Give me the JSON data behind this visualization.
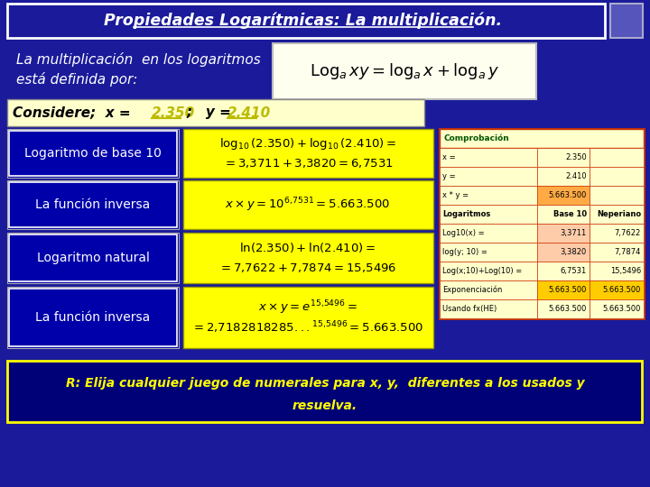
{
  "title": "Propiedades Logarítmicas: La multiplicación.",
  "bg_color": "#1a1a9a",
  "title_text_color": "#ffffff",
  "subtitle_line1": "La multiplicación  en los logaritmos",
  "subtitle_line2": "está definida por:",
  "rows": [
    {
      "label": "Logaritmo de base 10"
    },
    {
      "label": "La función inversa"
    },
    {
      "label": "Logaritmo natural"
    },
    {
      "label": "La función inversa"
    }
  ],
  "table_rows": [
    {
      "label": "x =",
      "base10": "2.350",
      "nep": "",
      "bg_b10": "#ffffcc",
      "bg_nep": "#ffffcc"
    },
    {
      "label": "y =",
      "base10": "2.410",
      "nep": "",
      "bg_b10": "#ffffcc",
      "bg_nep": "#ffffcc"
    },
    {
      "label": "x * y =",
      "base10": "5.663.500",
      "nep": "",
      "bg_b10": "#ffaa44",
      "bg_nep": "#ffffcc"
    },
    {
      "label": "Logaritmos",
      "base10": "Base 10",
      "nep": "Neperiano",
      "bg_b10": "#ffffcc",
      "bg_nep": "#ffffcc"
    },
    {
      "label": "Log10(x) =",
      "base10": "3,3711",
      "nep": "7,7622",
      "bg_b10": "#ffccaa",
      "bg_nep": "#ffffcc"
    },
    {
      "label": "log(y; 10) =",
      "base10": "3,3820",
      "nep": "7,7874",
      "bg_b10": "#ffccaa",
      "bg_nep": "#ffffcc"
    },
    {
      "label": "Log(x;10)+Log(10) =",
      "base10": "6,7531",
      "nep": "15,5496",
      "bg_b10": "#ffffcc",
      "bg_nep": "#ffffcc"
    },
    {
      "label": "Exponenciación",
      "base10": "5.663.500",
      "nep": "5.663.500",
      "bg_b10": "#ffcc00",
      "bg_nep": "#ffcc00"
    },
    {
      "label": "Usando fx(HE)",
      "base10": "5.663.500",
      "nep": "5.663.500",
      "bg_b10": "#ffffcc",
      "bg_nep": "#ffffcc"
    }
  ],
  "formula_box_color": "#ffff00",
  "bg_color2": "#000077"
}
